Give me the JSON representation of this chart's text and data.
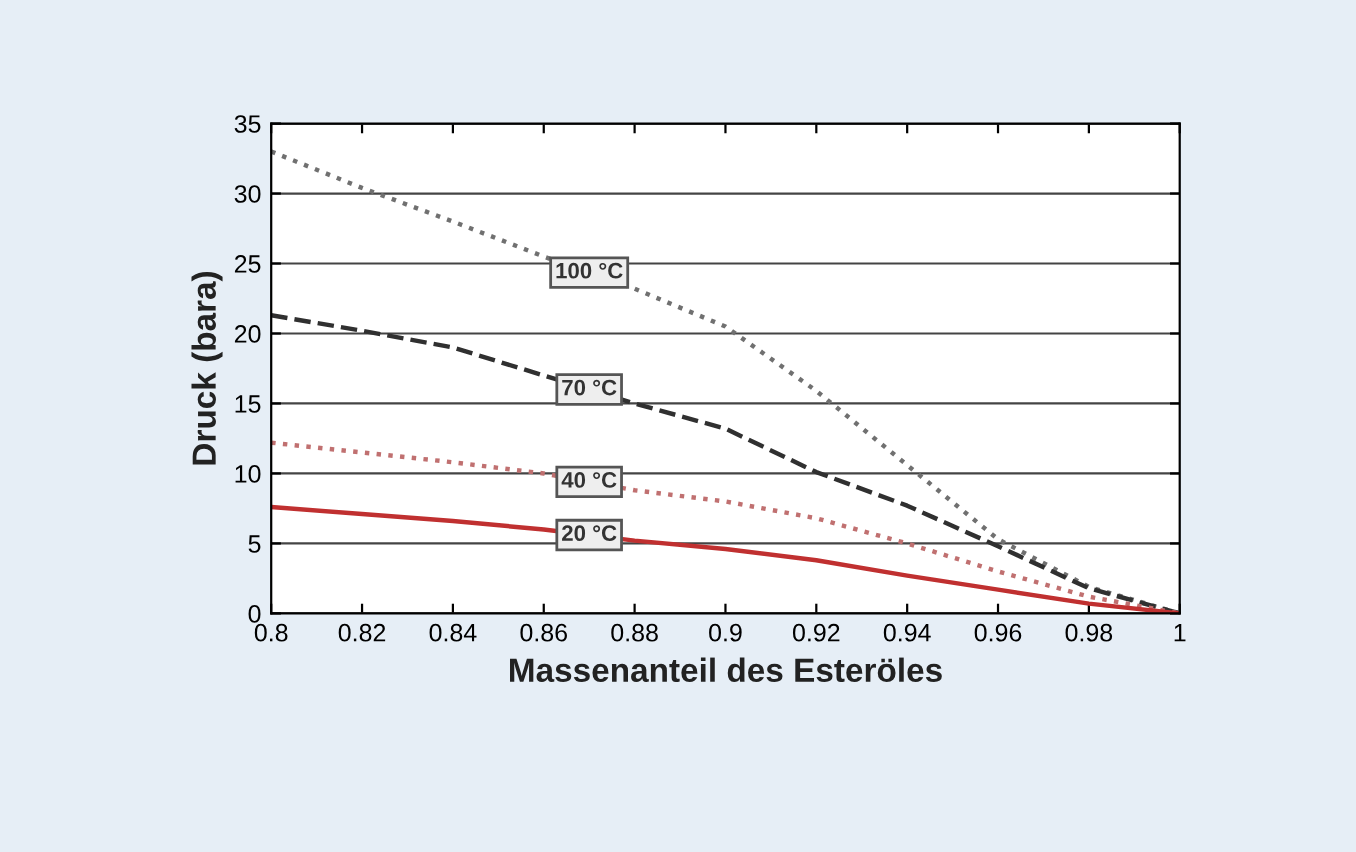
{
  "chart_data": {
    "type": "line",
    "xlabel": "Massenanteil des Esteröles",
    "ylabel": "Druck (bara)",
    "x": [
      0.8,
      0.82,
      0.84,
      0.86,
      0.88,
      0.9,
      0.92,
      0.94,
      0.96,
      0.98,
      1
    ],
    "series": [
      {
        "name": "100 °C",
        "color": "#707070",
        "line_style": "dotted",
        "values": [
          33,
          30.4,
          28,
          25.5,
          23.2,
          20.5,
          15.9,
          10.6,
          5.3,
          1.9,
          0
        ]
      },
      {
        "name": "70 °C",
        "color": "#303030",
        "line_style": "dashed",
        "values": [
          21.3,
          20.2,
          19,
          17,
          15,
          13.2,
          10.1,
          7.7,
          4.8,
          1.8,
          0
        ]
      },
      {
        "name": "40 °C",
        "color": "#c07070",
        "line_style": "dotted",
        "values": [
          12.2,
          11.5,
          10.8,
          10,
          8.8,
          8,
          6.8,
          5,
          3,
          1.2,
          0
        ]
      },
      {
        "name": "20 °C",
        "color": "#c03030",
        "line_style": "solid",
        "values": [
          7.6,
          7.1,
          6.6,
          6,
          5.2,
          4.6,
          3.8,
          2.7,
          1.7,
          0.7,
          0
        ]
      }
    ],
    "xlim": [
      0.8,
      1
    ],
    "xticks": [
      0.8,
      0.82,
      0.84,
      0.86,
      0.88,
      0.9,
      0.92,
      0.94,
      0.96,
      0.98,
      1
    ],
    "ylim": [
      0,
      35
    ],
    "yticks": [
      0,
      5,
      10,
      15,
      20,
      25,
      30,
      35
    ],
    "grid": "y",
    "legend": false
  }
}
